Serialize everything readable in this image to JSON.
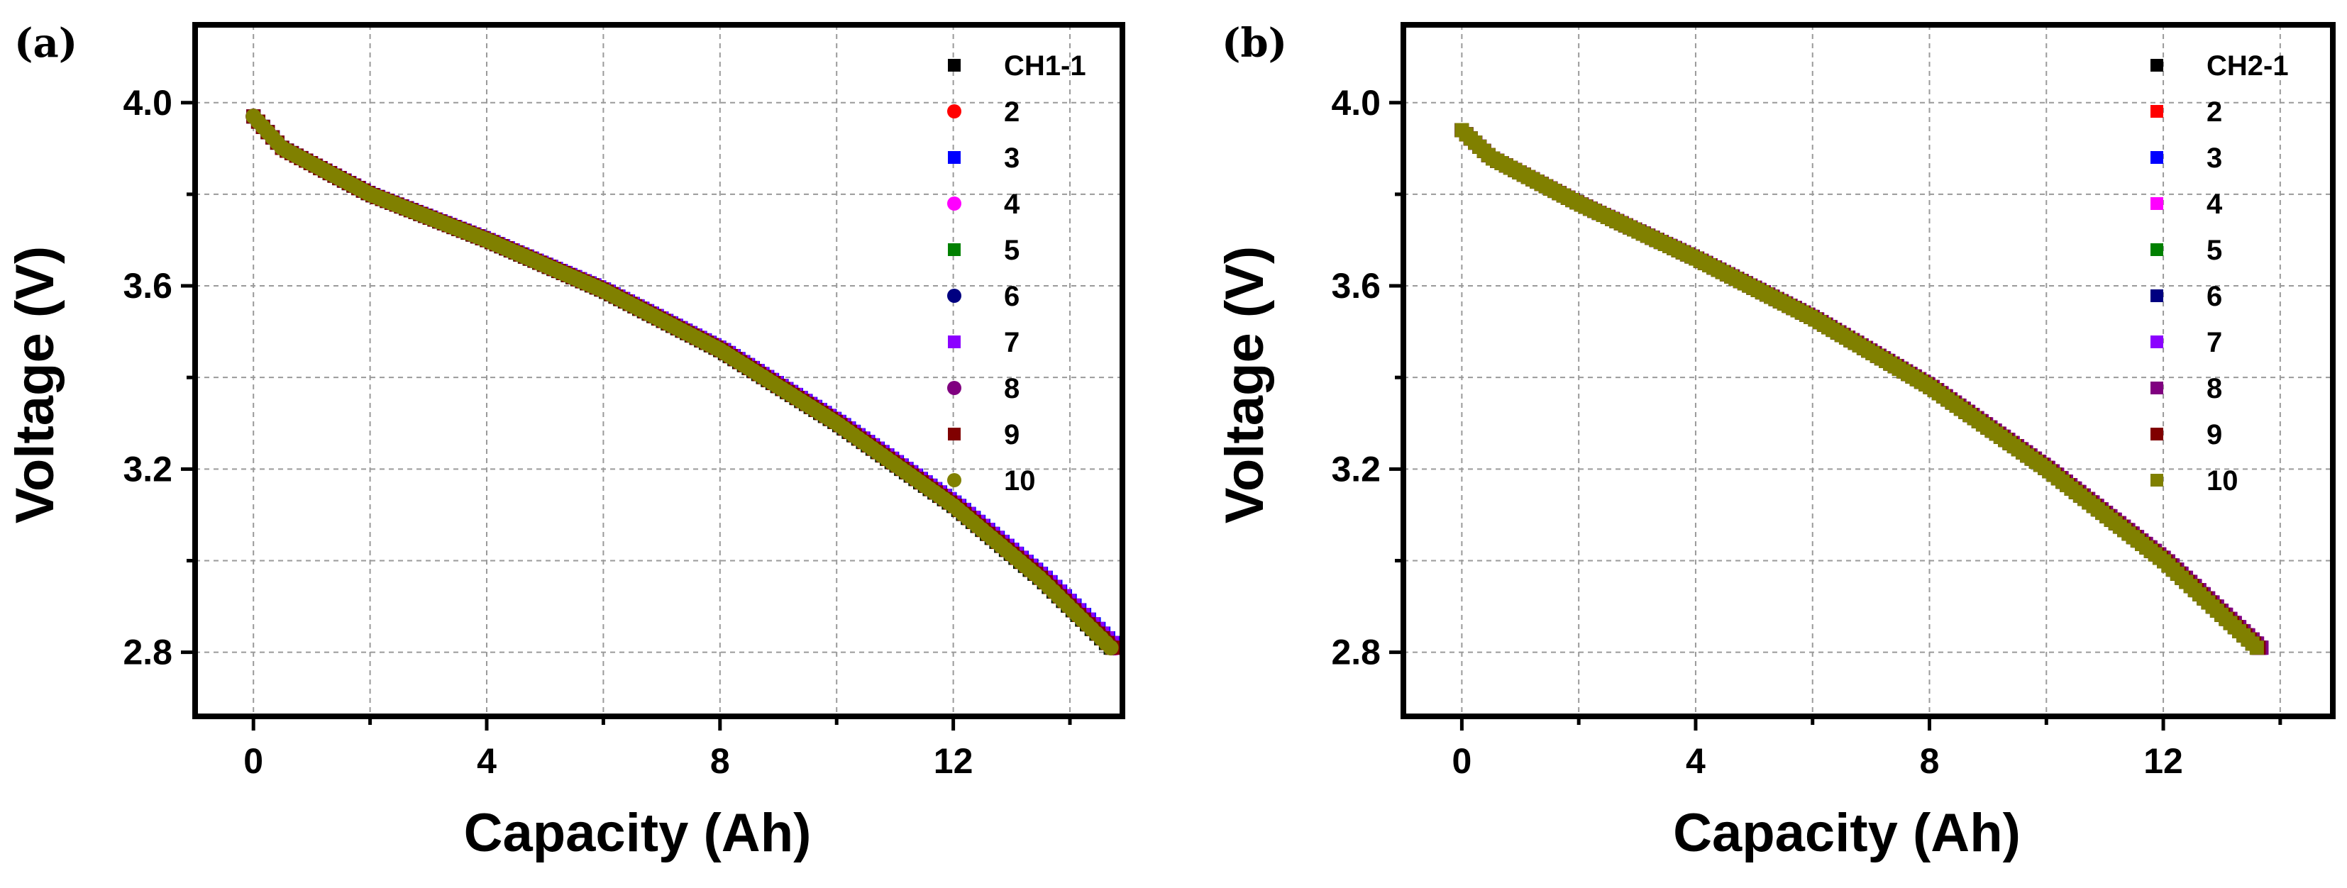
{
  "chart_data": [
    {
      "type": "line",
      "panel_label": "(a)",
      "xlabel": "Capacity (Ah)",
      "ylabel": "Voltage (V)",
      "xlim": [
        -1.0,
        14.9
      ],
      "ylim": [
        2.66,
        4.17
      ],
      "xticks": [
        0,
        4,
        8,
        12
      ],
      "xtick_labels": [
        "0",
        "4",
        "8",
        "12"
      ],
      "yticks": [
        2.8,
        3.2,
        3.6,
        4.0
      ],
      "ytick_labels": [
        "2.8",
        "3.2",
        "3.6",
        "4.0"
      ],
      "grid": true,
      "legend_position": "top-right",
      "curve_points": [
        [
          0,
          3.97
        ],
        [
          0.5,
          3.9
        ],
        [
          2,
          3.8
        ],
        [
          4,
          3.7
        ],
        [
          6,
          3.59
        ],
        [
          8,
          3.46
        ],
        [
          10,
          3.3
        ],
        [
          12,
          3.12
        ],
        [
          13.5,
          2.96
        ],
        [
          14.7,
          2.81
        ]
      ],
      "series": [
        {
          "name": "CH1-1",
          "marker": "square",
          "color": "#000000",
          "capacity_offset": 0.0
        },
        {
          "name": "2",
          "marker": "circle",
          "color": "#ff0000",
          "capacity_offset": 0.01
        },
        {
          "name": "3",
          "marker": "square",
          "color": "#0000ff",
          "capacity_offset": 0.12
        },
        {
          "name": "4",
          "marker": "circle",
          "color": "#ff00ff",
          "capacity_offset": 0.08
        },
        {
          "name": "5",
          "marker": "square",
          "color": "#008000",
          "capacity_offset": 0.02
        },
        {
          "name": "6",
          "marker": "circle",
          "color": "#000080",
          "capacity_offset": 0.04
        },
        {
          "name": "7",
          "marker": "square",
          "color": "#8b00ff",
          "capacity_offset": 0.1
        },
        {
          "name": "8",
          "marker": "circle",
          "color": "#800080",
          "capacity_offset": 0.05
        },
        {
          "name": "9",
          "marker": "square",
          "color": "#800000",
          "capacity_offset": 0.03
        },
        {
          "name": "10",
          "marker": "circle",
          "color": "#808000",
          "capacity_offset": 0.0
        }
      ]
    },
    {
      "type": "line",
      "panel_label": "(b)",
      "xlabel": "Capacity (Ah)",
      "ylabel": "Voltage (V)",
      "xlim": [
        -1.0,
        14.9
      ],
      "ylim": [
        2.66,
        4.17
      ],
      "xticks": [
        0,
        4,
        8,
        12
      ],
      "xtick_labels": [
        "0",
        "4",
        "8",
        "12"
      ],
      "yticks": [
        2.8,
        3.2,
        3.6,
        4.0
      ],
      "ytick_labels": [
        "2.8",
        "3.2",
        "3.6",
        "4.0"
      ],
      "grid": true,
      "legend_position": "top-right",
      "curve_points": [
        [
          0,
          3.94
        ],
        [
          0.5,
          3.88
        ],
        [
          2,
          3.78
        ],
        [
          4,
          3.66
        ],
        [
          6,
          3.53
        ],
        [
          8,
          3.38
        ],
        [
          10,
          3.2
        ],
        [
          12,
          3.0
        ],
        [
          13.6,
          2.81
        ]
      ],
      "series": [
        {
          "name": "CH2-1",
          "marker": "square",
          "color": "#000000",
          "capacity_offset": 0.0
        },
        {
          "name": "2",
          "marker": "square",
          "color": "#ff0000",
          "capacity_offset": 0.02
        },
        {
          "name": "3",
          "marker": "square",
          "color": "#0000ff",
          "capacity_offset": 0.04
        },
        {
          "name": "4",
          "marker": "square",
          "color": "#ff00ff",
          "capacity_offset": 0.06
        },
        {
          "name": "5",
          "marker": "square",
          "color": "#008000",
          "capacity_offset": 0.01
        },
        {
          "name": "6",
          "marker": "square",
          "color": "#000080",
          "capacity_offset": 0.05
        },
        {
          "name": "7",
          "marker": "square",
          "color": "#8b00ff",
          "capacity_offset": 0.07
        },
        {
          "name": "8",
          "marker": "square",
          "color": "#800080",
          "capacity_offset": 0.08
        },
        {
          "name": "9",
          "marker": "square",
          "color": "#800000",
          "capacity_offset": 0.03
        },
        {
          "name": "10",
          "marker": "square",
          "color": "#808000",
          "capacity_offset": 0.0
        }
      ]
    }
  ]
}
